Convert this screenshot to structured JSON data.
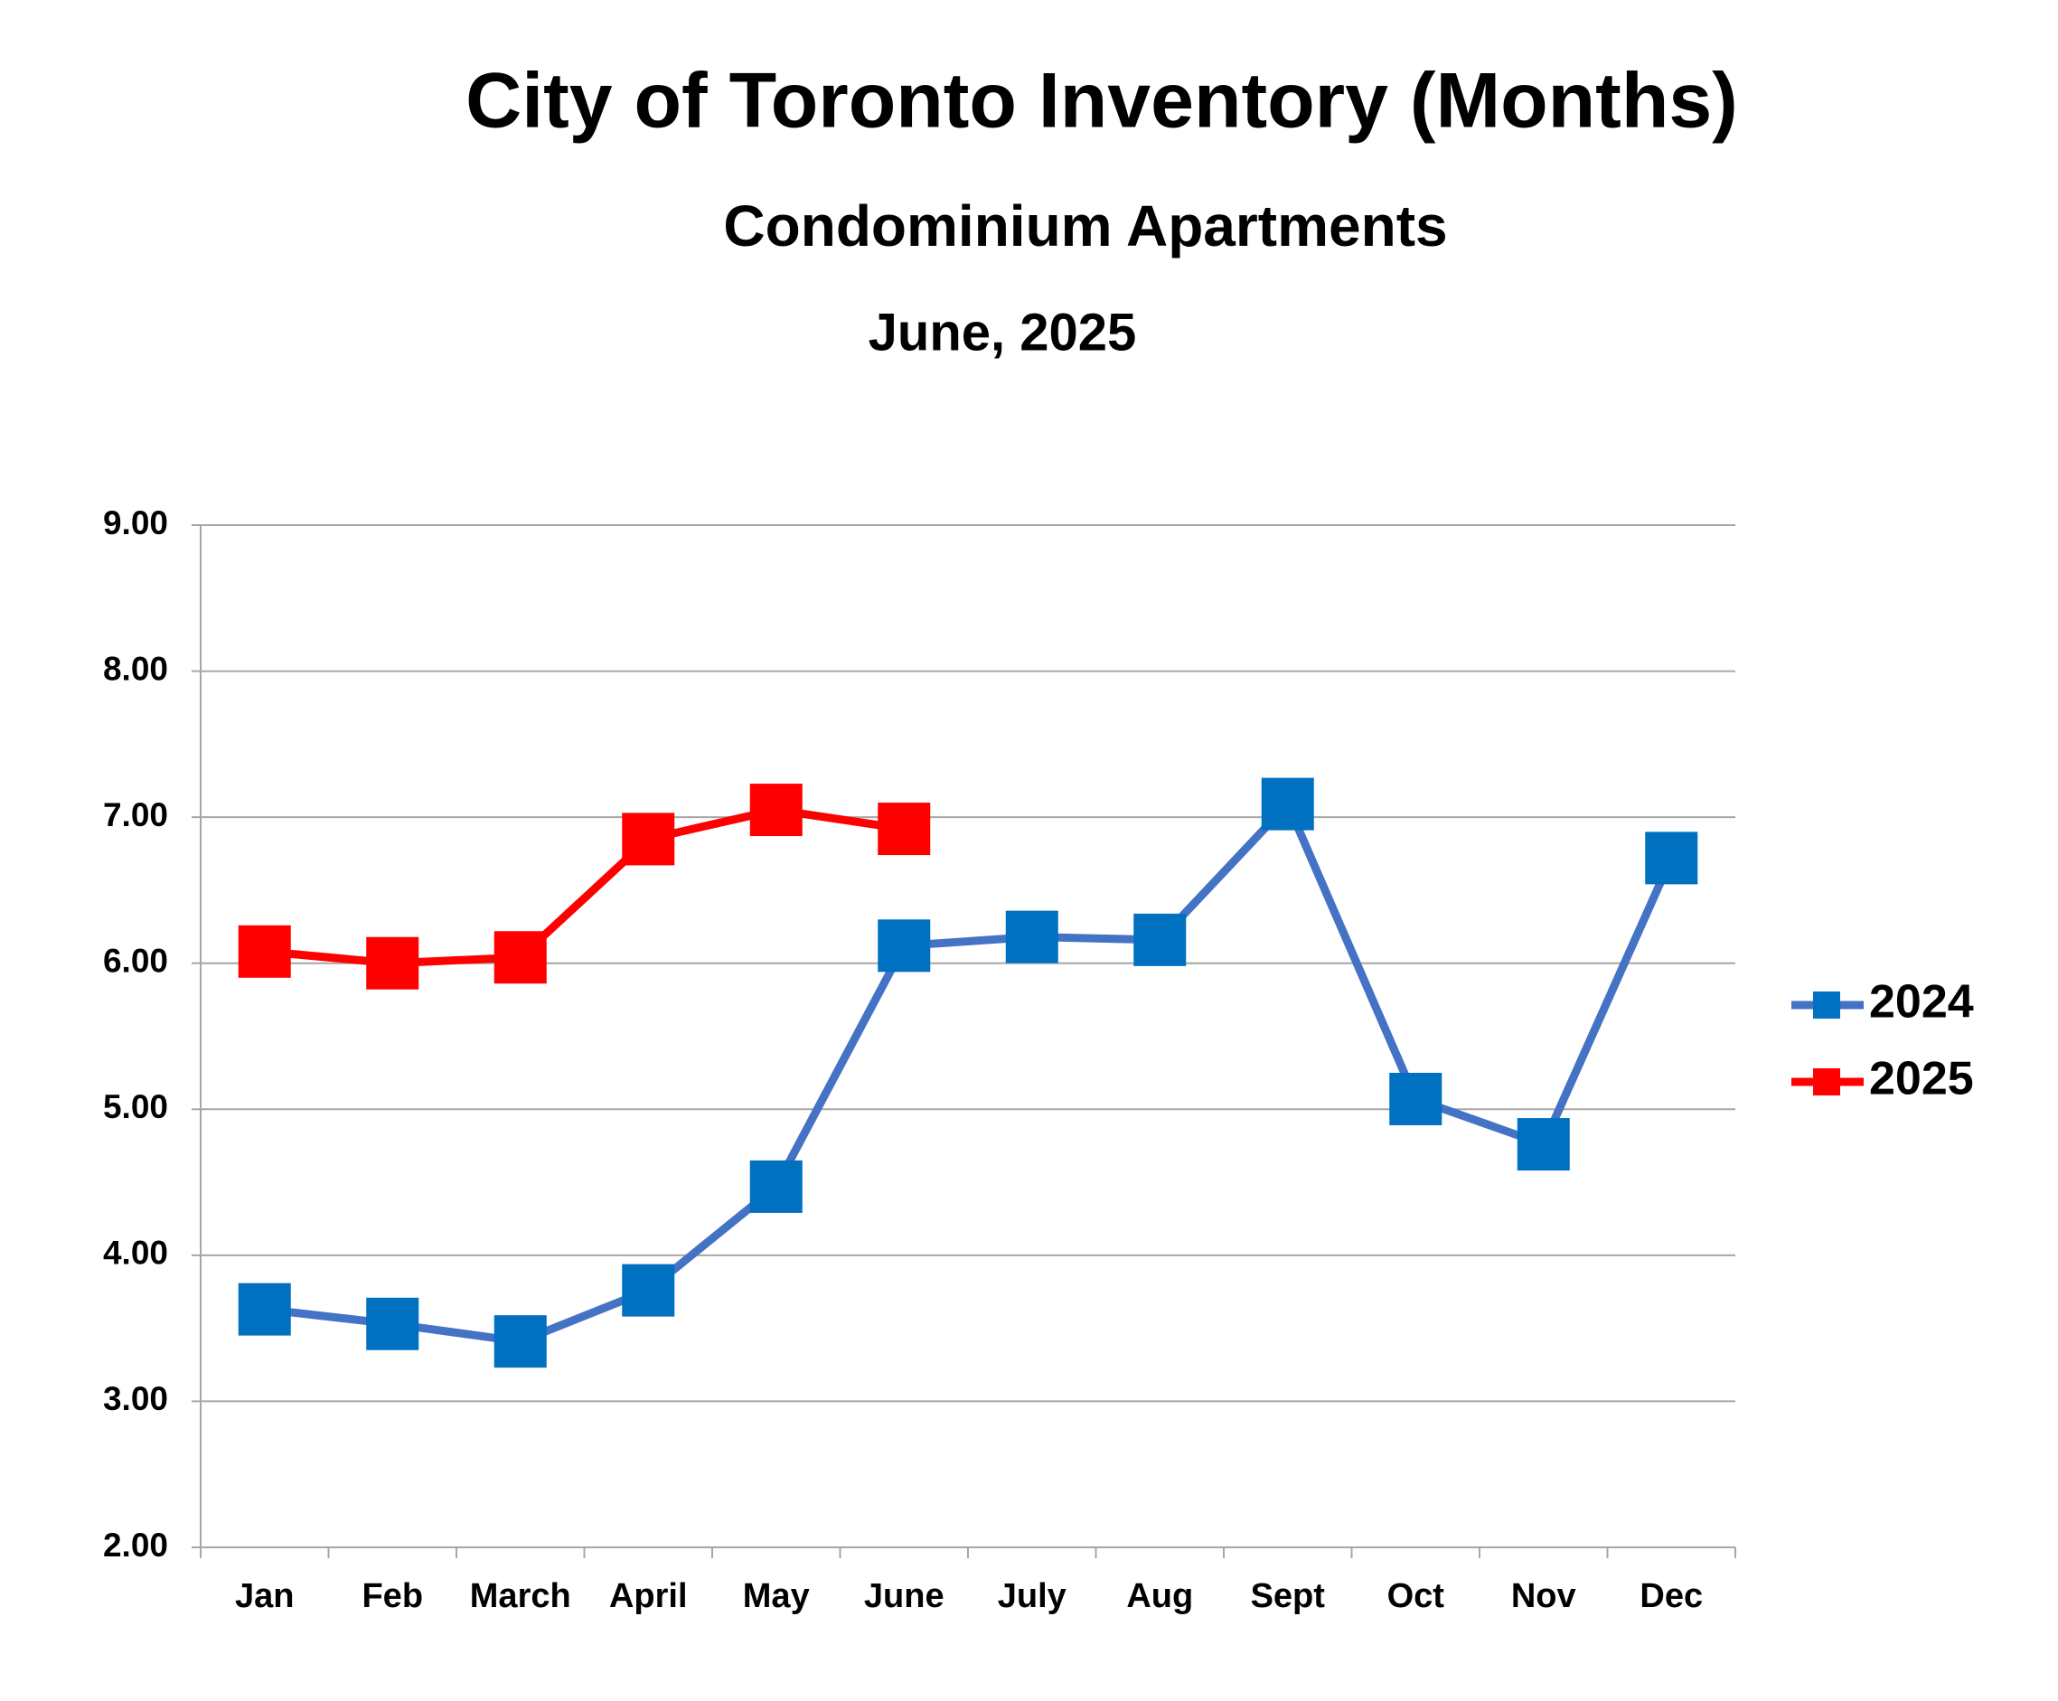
{
  "chart_data": {
    "type": "line",
    "title": "City of Toronto Inventory (Months)",
    "subtitle": "Condominium Apartments",
    "date_label": "June, 2025",
    "categories": [
      "Jan",
      "Feb",
      "March",
      "April",
      "May",
      "June",
      "July",
      "Aug",
      "Sept",
      "Oct",
      "Nov",
      "Dec"
    ],
    "series": [
      {
        "name": "2024",
        "color": "#4472c4",
        "marker_color": "#0070c0",
        "values": [
          3.63,
          3.53,
          3.41,
          3.76,
          4.47,
          6.12,
          6.18,
          6.16,
          7.09,
          5.07,
          4.76,
          6.72
        ]
      },
      {
        "name": "2025",
        "color": "#ff0000",
        "marker_color": "#ff0000",
        "values": [
          6.08,
          6.0,
          6.04,
          6.85,
          7.05,
          6.92,
          null,
          null,
          null,
          null,
          null,
          null
        ]
      }
    ],
    "ylim": [
      2,
      9
    ],
    "yticks": [
      {
        "value": 2,
        "label": "2.00"
      },
      {
        "value": 3,
        "label": "3.00"
      },
      {
        "value": 4,
        "label": "4.00"
      },
      {
        "value": 5,
        "label": "5.00"
      },
      {
        "value": 6,
        "label": "6.00"
      },
      {
        "value": 7,
        "label": "7.00"
      },
      {
        "value": 8,
        "label": "8.00"
      },
      {
        "value": 9,
        "label": "9.00"
      }
    ],
    "grid": true,
    "legend": "right"
  }
}
